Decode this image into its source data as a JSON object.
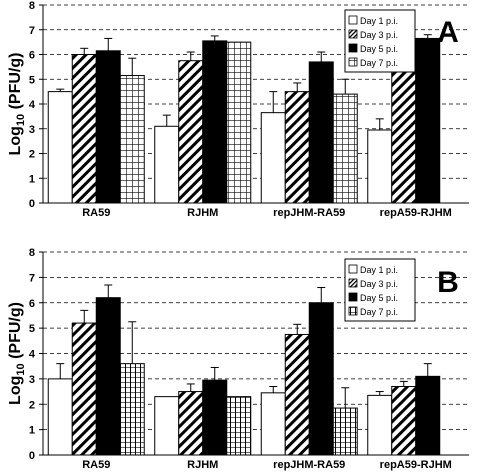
{
  "chart_data": [
    {
      "type": "bar",
      "panel_label": "A",
      "ylabel_main": "Log",
      "ylabel_sub": "10",
      "ylabel_rest": " (PFU/g)",
      "ylim": [
        0,
        8
      ],
      "yticks": [
        "0",
        "1",
        "2",
        "3",
        "4",
        "5",
        "6",
        "7",
        "8"
      ],
      "grid": "horizontal-dashed",
      "legend_position": "top-right",
      "categories": [
        "RA59",
        "RJHM",
        "repJHM-RA59",
        "repA59-RJHM"
      ],
      "series": [
        {
          "name": "Day 1 p.i.",
          "pattern": "white",
          "values": [
            4.5,
            3.1,
            3.65,
            2.95
          ],
          "errors": [
            0.1,
            0.45,
            0.85,
            0.45
          ]
        },
        {
          "name": "Day 3 p.i.",
          "pattern": "diagonal",
          "values": [
            6.0,
            5.75,
            4.5,
            5.4
          ],
          "errors": [
            0.25,
            0.35,
            0.35,
            0.45
          ]
        },
        {
          "name": "Day 5 p.i.",
          "pattern": "black",
          "values": [
            6.15,
            6.55,
            5.7,
            6.65
          ],
          "errors": [
            0.5,
            0.2,
            0.4,
            0.15
          ]
        },
        {
          "name": "Day 7 p.i.",
          "pattern": "grid",
          "values": [
            5.15,
            6.5,
            4.4,
            null
          ],
          "errors": [
            0.7,
            0.0,
            0.6,
            null
          ]
        }
      ]
    },
    {
      "type": "bar",
      "panel_label": "B",
      "ylabel_main": "Log",
      "ylabel_sub": "10",
      "ylabel_rest": " (PFU/g)",
      "ylim": [
        0,
        8
      ],
      "yticks": [
        "0",
        "1",
        "2",
        "3",
        "4",
        "5",
        "6",
        "7",
        "8"
      ],
      "grid": "horizontal-dashed",
      "legend_position": "top-right",
      "categories": [
        "RA59",
        "RJHM",
        "repJHM-RA59",
        "repA59-RJHM"
      ],
      "series": [
        {
          "name": "Day 1 p.i.",
          "pattern": "white",
          "values": [
            3.0,
            2.3,
            2.45,
            2.35
          ],
          "errors": [
            0.6,
            0.0,
            0.25,
            0.15
          ]
        },
        {
          "name": "Day 3 p.i.",
          "pattern": "diagonal",
          "values": [
            5.2,
            2.5,
            4.75,
            2.7
          ],
          "errors": [
            0.5,
            0.3,
            0.4,
            0.2
          ]
        },
        {
          "name": "Day 5 p.i.",
          "pattern": "black",
          "values": [
            6.2,
            2.95,
            6.0,
            3.1
          ],
          "errors": [
            0.5,
            0.5,
            0.6,
            0.5
          ]
        },
        {
          "name": "Day 7 p.i.",
          "pattern": "vgrid",
          "values": [
            3.6,
            2.3,
            1.85,
            null
          ],
          "errors": [
            1.65,
            0.0,
            0.8,
            null
          ]
        }
      ]
    }
  ]
}
